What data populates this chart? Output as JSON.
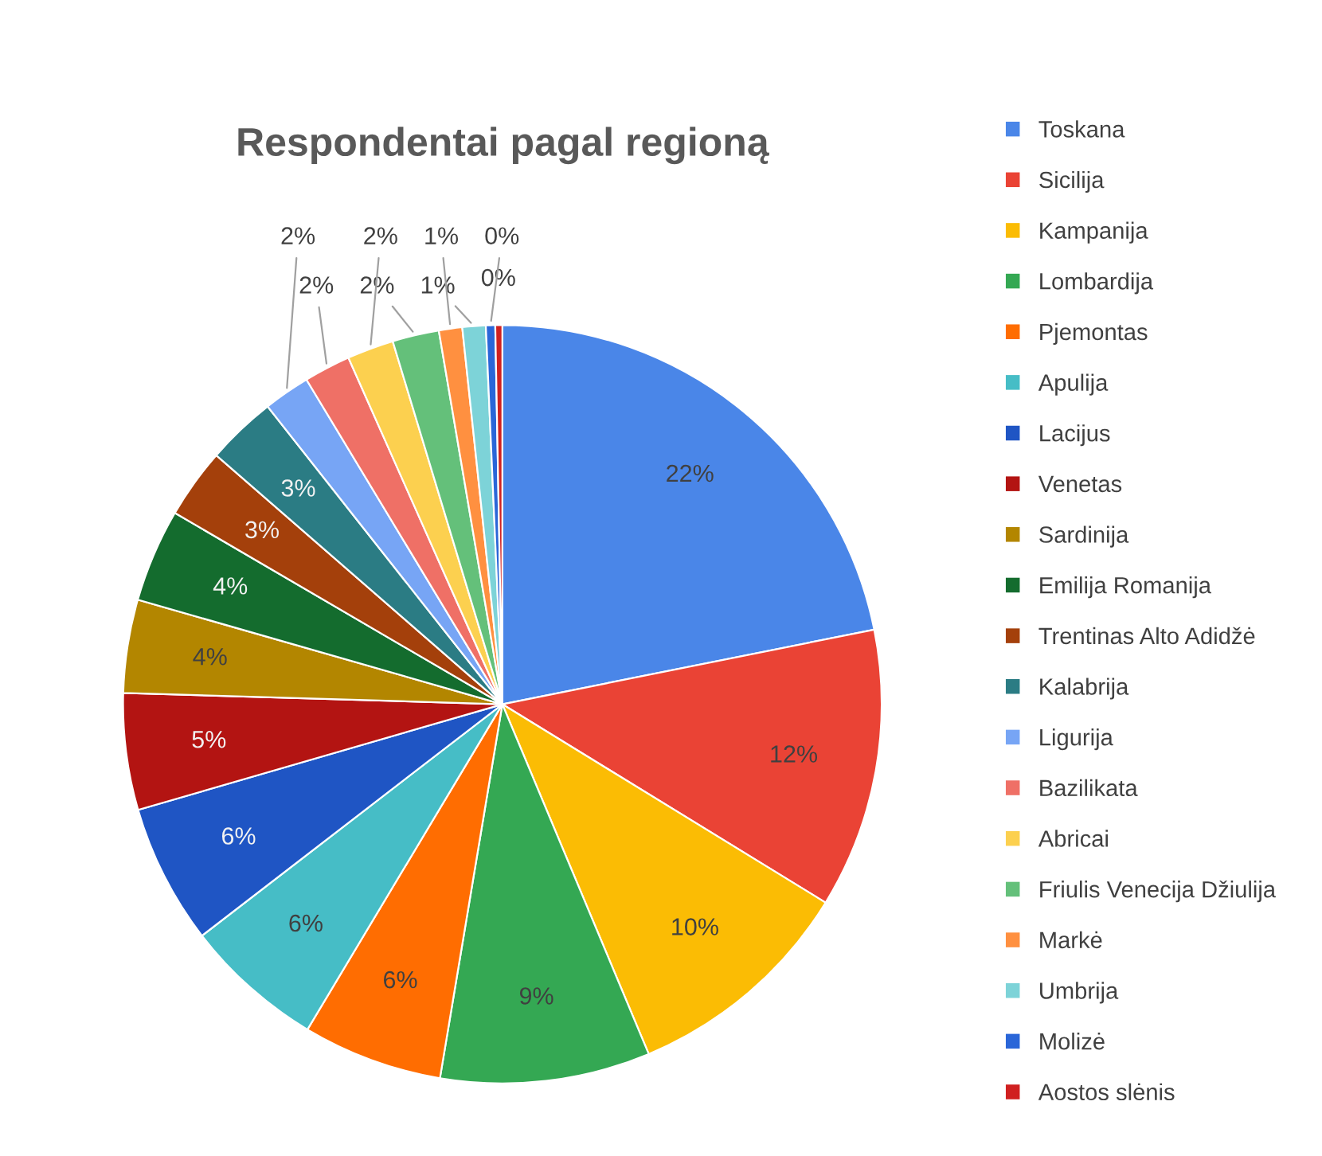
{
  "chart_data": {
    "type": "pie",
    "title": "Respondentai pagal regioną",
    "categories": [
      "Toskana",
      "Sicilija",
      "Kampanija",
      "Lombardija",
      "Pjemontas",
      "Apulija",
      "Lacijus",
      "Venetas",
      "Sardinija",
      "Emilija Romanija",
      "Trentinas Alto Adidžė",
      "Kalabrija",
      "Ligurija",
      "Bazilikata",
      "Abricai",
      "Friulis Venecija Džiulija",
      "Markė",
      "Umbrija",
      "Molizė",
      "Aostos slėnis"
    ],
    "values": [
      22,
      12,
      10,
      9,
      6,
      6,
      6,
      5,
      4,
      4,
      3,
      3,
      2,
      2,
      2,
      2,
      1,
      1,
      0.4,
      0.3
    ],
    "value_labels": [
      "22%",
      "12%",
      "10%",
      "9%",
      "6%",
      "6%",
      "6%",
      "5%",
      "4%",
      "4%",
      "3%",
      "3%",
      "2%",
      "2%",
      "2%",
      "2%",
      "1%",
      "1%",
      "0%",
      "0%"
    ],
    "colors": [
      "#4a86e8",
      "#ea4335",
      "#fbbc04",
      "#34a853",
      "#ff6d01",
      "#46bdc6",
      "#1f55c4",
      "#b31412",
      "#b38600",
      "#146c2e",
      "#a4400b",
      "#2b7c84",
      "#77a5f5",
      "#ef7066",
      "#fcd04f",
      "#64c07a",
      "#ff9040",
      "#7dd3d8",
      "#2a66d8",
      "#d02020"
    ],
    "legend": "right"
  }
}
